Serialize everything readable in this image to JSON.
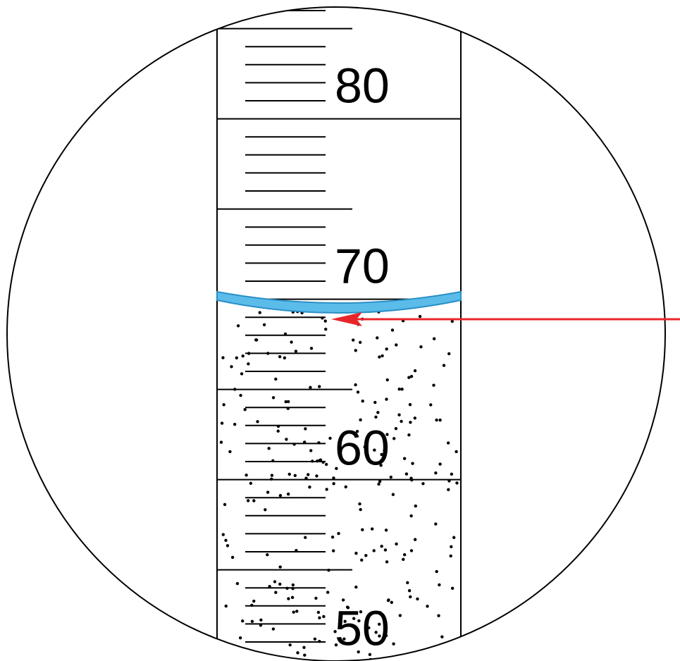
{
  "scale": {
    "labels": [
      "80",
      "70",
      "60",
      "50"
    ]
  }
}
